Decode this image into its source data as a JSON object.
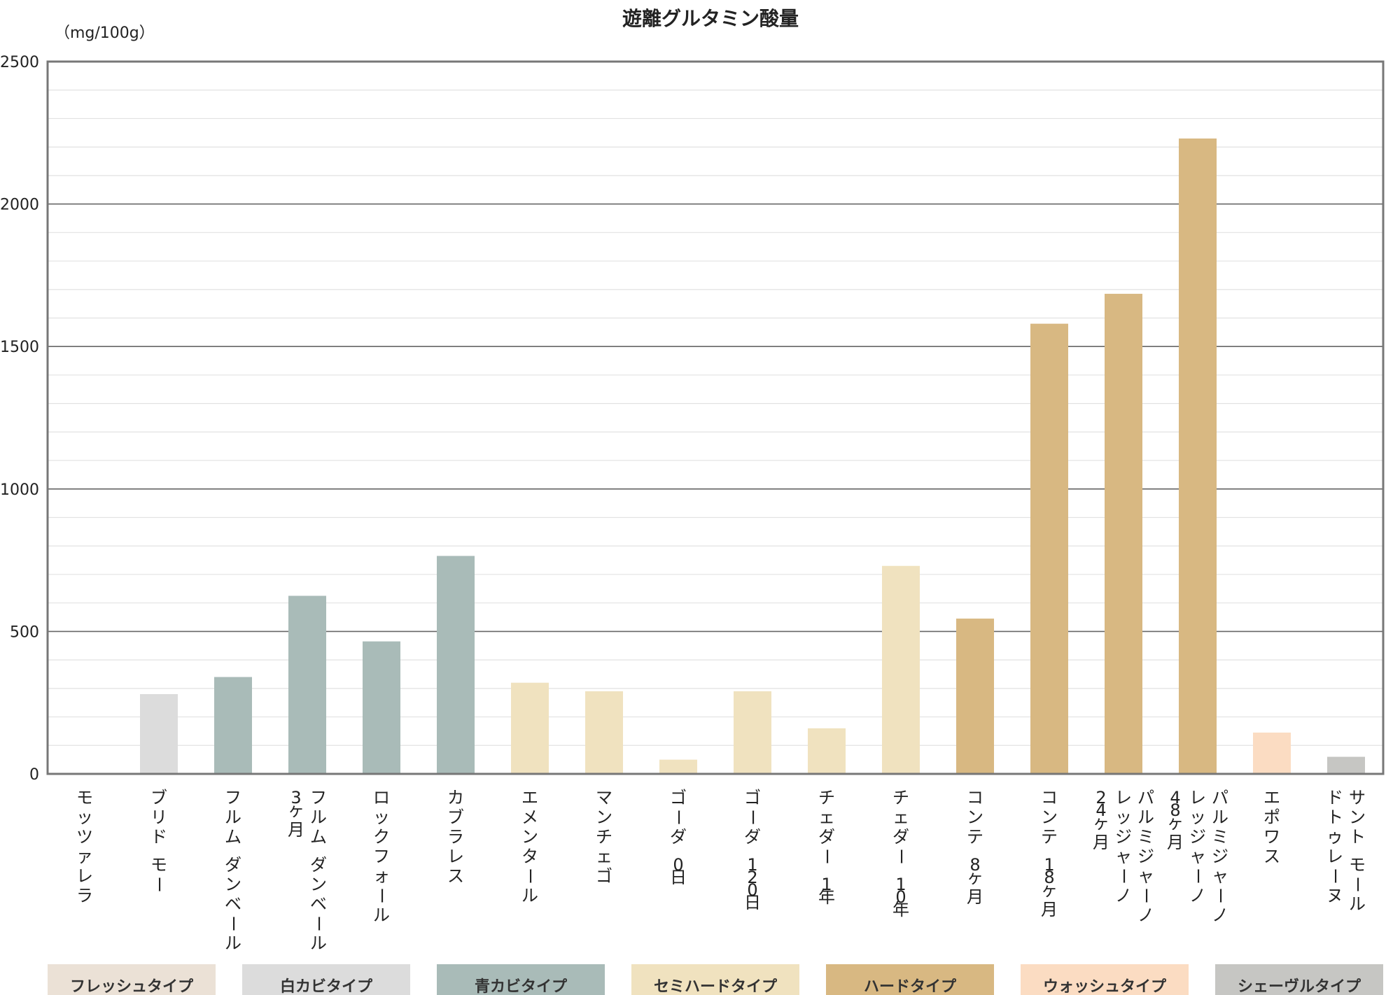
{
  "chart_data": {
    "type": "bar",
    "title": "遊離グルタミン酸量",
    "ylabel": "（mg/100g）",
    "xlabel": "",
    "ylim": [
      0,
      2500
    ],
    "yticks": [
      0,
      500,
      1000,
      1500,
      2000,
      2500
    ],
    "minor_gridlines": true,
    "legend_position": "bottom",
    "categories": [
      {
        "label": [
          "モッツァレラ"
        ],
        "value": 0,
        "type": "フレッシュタイプ"
      },
      {
        "label": [
          "ブリド モー"
        ],
        "value": 280,
        "type": "白カビタイプ"
      },
      {
        "label": [
          "フルム ダンベール"
        ],
        "value": 340,
        "type": "青カビタイプ"
      },
      {
        "label": [
          "フルム ダンベール",
          "3ヶ月"
        ],
        "value": 625,
        "type": "青カビタイプ"
      },
      {
        "label": [
          "ロックフォール"
        ],
        "value": 465,
        "type": "青カビタイプ"
      },
      {
        "label": [
          "カブラレス"
        ],
        "value": 765,
        "type": "青カビタイプ"
      },
      {
        "label": [
          "エメンタール"
        ],
        "value": 320,
        "type": "セミハードタイプ"
      },
      {
        "label": [
          "マンチェゴ"
        ],
        "value": 290,
        "type": "セミハードタイプ"
      },
      {
        "label": [
          "ゴーダ 0日"
        ],
        "value": 50,
        "type": "セミハードタイプ"
      },
      {
        "label": [
          "ゴーダ 120日"
        ],
        "value": 290,
        "type": "セミハードタイプ"
      },
      {
        "label": [
          "チェダー 1年"
        ],
        "value": 160,
        "type": "セミハードタイプ"
      },
      {
        "label": [
          "チェダー 10年"
        ],
        "value": 730,
        "type": "セミハードタイプ"
      },
      {
        "label": [
          "コンテ 8ヶ月"
        ],
        "value": 545,
        "type": "ハードタイプ"
      },
      {
        "label": [
          "コンテ 18ヶ月"
        ],
        "value": 1580,
        "type": "ハードタイプ"
      },
      {
        "label": [
          "パルミジャーノ",
          "レッジャーノ",
          "24ヶ月"
        ],
        "value": 1685,
        "type": "ハードタイプ"
      },
      {
        "label": [
          "パルミジャーノ",
          "レッジャーノ",
          "48ヶ月"
        ],
        "value": 2230,
        "type": "ハードタイプ"
      },
      {
        "label": [
          "エポワス"
        ],
        "value": 145,
        "type": "ウォッシュタイプ"
      },
      {
        "label": [
          "サント モール",
          "ドトゥレーヌ"
        ],
        "value": 60,
        "type": "シェーヴルタイプ"
      }
    ],
    "legend": [
      {
        "name": "フレッシュタイプ",
        "color": "#ebe1d6"
      },
      {
        "name": "白カビタイプ",
        "color": "#dcdcdc"
      },
      {
        "name": "青カビタイプ",
        "color": "#a9bbb8"
      },
      {
        "name": "セミハードタイプ",
        "color": "#f0e2bf"
      },
      {
        "name": "ハードタイプ",
        "color": "#d8b882"
      },
      {
        "name": "ウォッシュタイプ",
        "color": "#fbdcc2"
      },
      {
        "name": "シェーヴルタイプ",
        "color": "#c6c6c3"
      }
    ]
  }
}
